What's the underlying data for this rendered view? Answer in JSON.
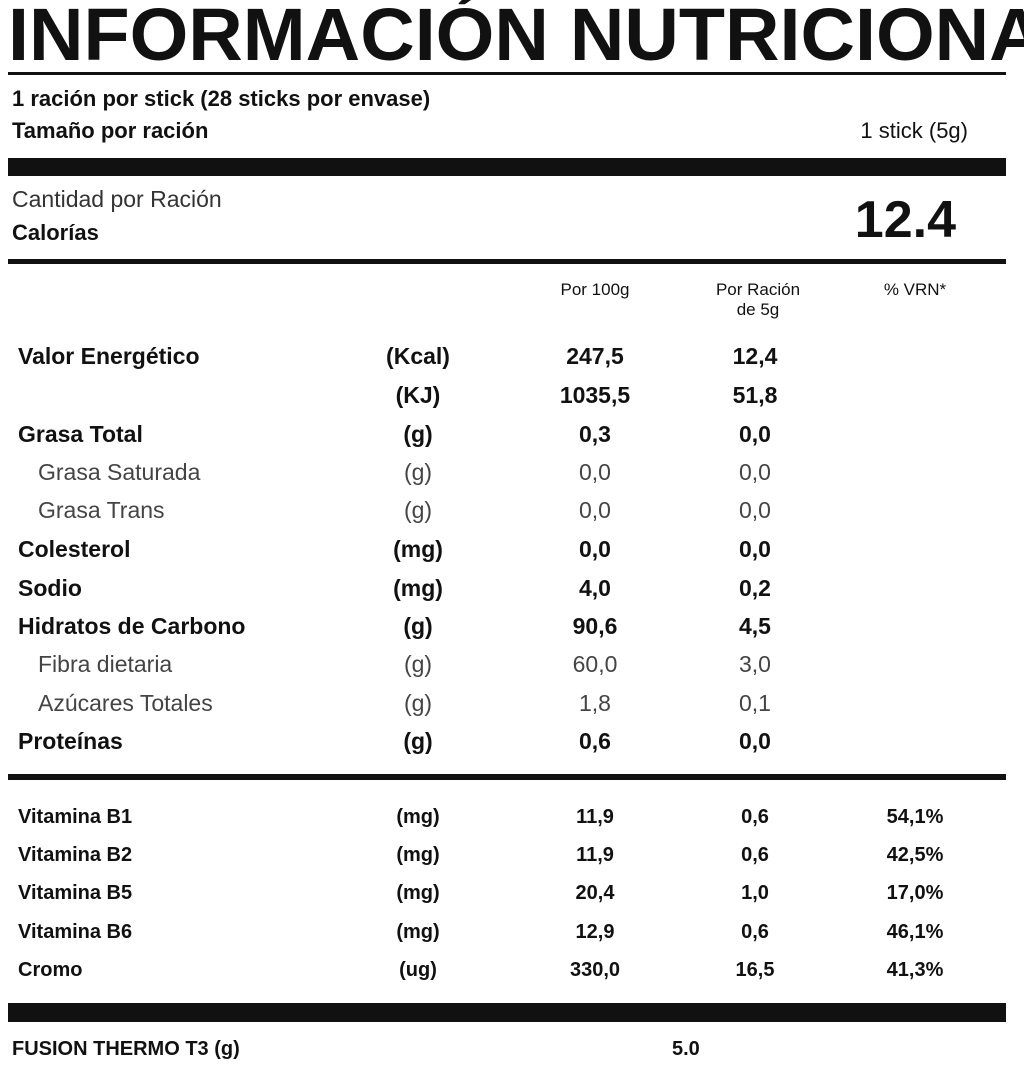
{
  "header": {
    "title": "INFORMACIÓN NUTRICIONAL"
  },
  "serving": {
    "line1": "1 ración por stick (28 sticks por envase)",
    "size_label": "Tamaño por ración",
    "size_value": "1 stick (5g)"
  },
  "calories": {
    "amount_label": "Cantidad por Ración",
    "label": "Calorías",
    "value": "12.4"
  },
  "table": {
    "columns": [
      "Por 100g",
      [
        "Por Ración",
        "de 5g"
      ],
      "% VRN*"
    ],
    "rows": [
      {
        "name": "Valor Energético",
        "unit": "(Kcal)",
        "per_100g": "247,5",
        "per_serving": "12,4"
      },
      {
        "unit": "(KJ)",
        "per_100g": "1035,5",
        "per_serving": "51,8"
      },
      {
        "name": "Grasa Total",
        "unit": "(g)",
        "per_100g": "0,3",
        "per_serving": "0,0"
      },
      {
        "name": "Grasa Saturada",
        "unit": "(g)",
        "per_100g": "0,0",
        "per_serving": "0,0"
      },
      {
        "name": "Grasa Trans",
        "unit": "(g)",
        "per_100g": "0,0",
        "per_serving": "0,0"
      },
      {
        "name": "Colesterol",
        "unit": "(mg)",
        "per_100g": "0,0",
        "per_serving": "0,0"
      },
      {
        "name": "Sodio",
        "unit": "(mg)",
        "per_100g": "4,0",
        "per_serving": "0,2"
      },
      {
        "name": "Hidratos de Carbono",
        "unit": "(g)",
        "per_100g": "90,6",
        "per_serving": "4,5"
      },
      {
        "name": "Fibra dietaria",
        "unit": "(g)",
        "per_100g": "60,0",
        "per_serving": "3,0"
      },
      {
        "name": "Azúcares Totales",
        "unit": "(g)",
        "per_100g": "1,8",
        "per_serving": "0,1"
      },
      {
        "name": "Proteínas",
        "unit": "(g)",
        "per_100g": "0,6",
        "per_serving": "0,0"
      }
    ],
    "vitamins": [
      {
        "name": "Vitamina B1",
        "unit": "(mg)",
        "per_100g": "11,9",
        "per_serving": "0,6",
        "vrn": "54,1%"
      },
      {
        "name": "Vitamina B2",
        "unit": "(mg)",
        "per_100g": "11,9",
        "per_serving": "0,6",
        "vrn": "42,5%"
      },
      {
        "name": "Vitamina B5",
        "unit": "(mg)",
        "per_100g": "20,4",
        "per_serving": "1,0",
        "vrn": "17,0%"
      },
      {
        "name": "Vitamina B6",
        "unit": "(mg)",
        "per_100g": "12,9",
        "per_serving": "0,6",
        "vrn": "46,1%"
      },
      {
        "name": "Cromo",
        "unit": "(ug)",
        "per_100g": "330,0",
        "per_serving": "16,5",
        "vrn": "41,3%"
      }
    ]
  },
  "footer": {
    "label": "FUSION THERMO T3 (g)",
    "value": "5.0"
  }
}
